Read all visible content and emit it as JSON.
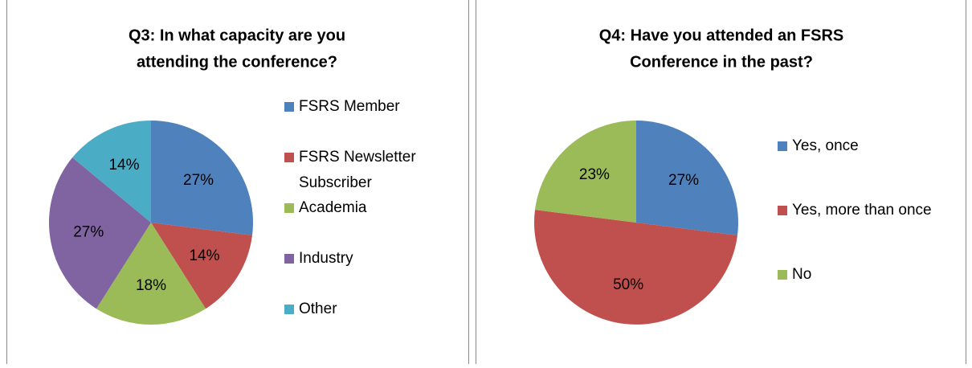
{
  "chart_data": [
    {
      "type": "pie",
      "title": [
        "Q3: In what capacity are you",
        "attending the conference?"
      ],
      "categories": [
        "FSRS Member",
        "FSRS Newsletter Subscriber",
        "Academia",
        "Industry",
        "Other"
      ],
      "values": [
        27,
        14,
        18,
        27,
        14
      ],
      "value_labels": [
        "27%",
        "14%",
        "18%",
        "27%",
        "14%"
      ],
      "colors": [
        "#4f81bd",
        "#c0504d",
        "#9bbb59",
        "#8064a2",
        "#4bacc6"
      ],
      "legend": "right"
    },
    {
      "type": "pie",
      "title": [
        "Q4: Have you attended an FSRS",
        "Conference in the past?"
      ],
      "categories": [
        "Yes, once",
        "Yes, more than once",
        "No"
      ],
      "values": [
        27,
        50,
        23
      ],
      "value_labels": [
        "27%",
        "50%",
        "23%"
      ],
      "colors": [
        "#4f81bd",
        "#c0504d",
        "#9bbb59"
      ],
      "legend": "right"
    }
  ]
}
